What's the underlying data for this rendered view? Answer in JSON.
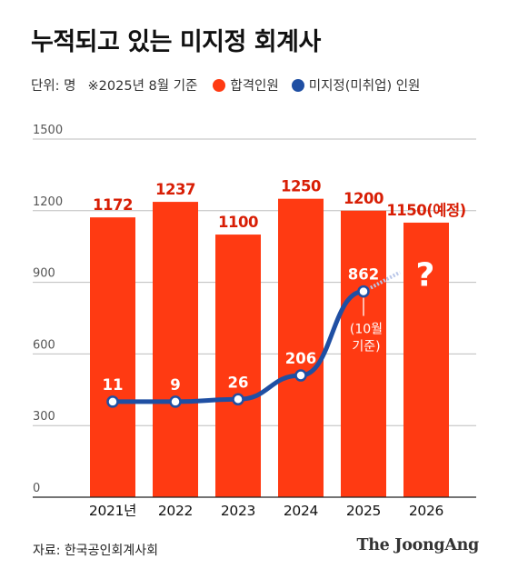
{
  "title": "누적되고 있는 미지정 회계사",
  "unit_note": "단위: 명",
  "basis_note": "※2025년 8월 기준",
  "legend": {
    "passed": "합격인원",
    "unassigned": "미지정(미취업) 인원"
  },
  "colors": {
    "bar": "#ff3a12",
    "line": "#1f4fa3",
    "grid": "#bdbdbd",
    "bar_label": "#d81e05"
  },
  "source": "자료: 한국공인회계사회",
  "brand": "The JoongAng",
  "chart_data": {
    "type": "bar",
    "categories": [
      "2021년",
      "2022",
      "2023",
      "2024",
      "2025",
      "2026"
    ],
    "ylim": [
      0,
      1500
    ],
    "yticks": [
      0,
      300,
      600,
      900,
      1200,
      1500
    ],
    "grid": true,
    "series": [
      {
        "name": "합격인원",
        "type": "bar",
        "values": [
          1172,
          1237,
          1100,
          1250,
          1200,
          1150
        ],
        "labels": [
          "1172",
          "1237",
          "1100",
          "1250",
          "1200",
          "1150(예정)"
        ]
      },
      {
        "name": "미지정(미취업) 인원",
        "type": "line",
        "values": [
          11,
          9,
          26,
          206,
          862,
          null
        ],
        "labels": [
          "11",
          "9",
          "26",
          "206",
          "862",
          ""
        ],
        "display_values": [
          400,
          400,
          410,
          510,
          862,
          null
        ]
      }
    ],
    "annotations": [
      {
        "text": "(10월",
        "category": "2025"
      },
      {
        "text": "기준)",
        "category": "2025"
      },
      {
        "text": "?",
        "category": "2026"
      }
    ]
  }
}
